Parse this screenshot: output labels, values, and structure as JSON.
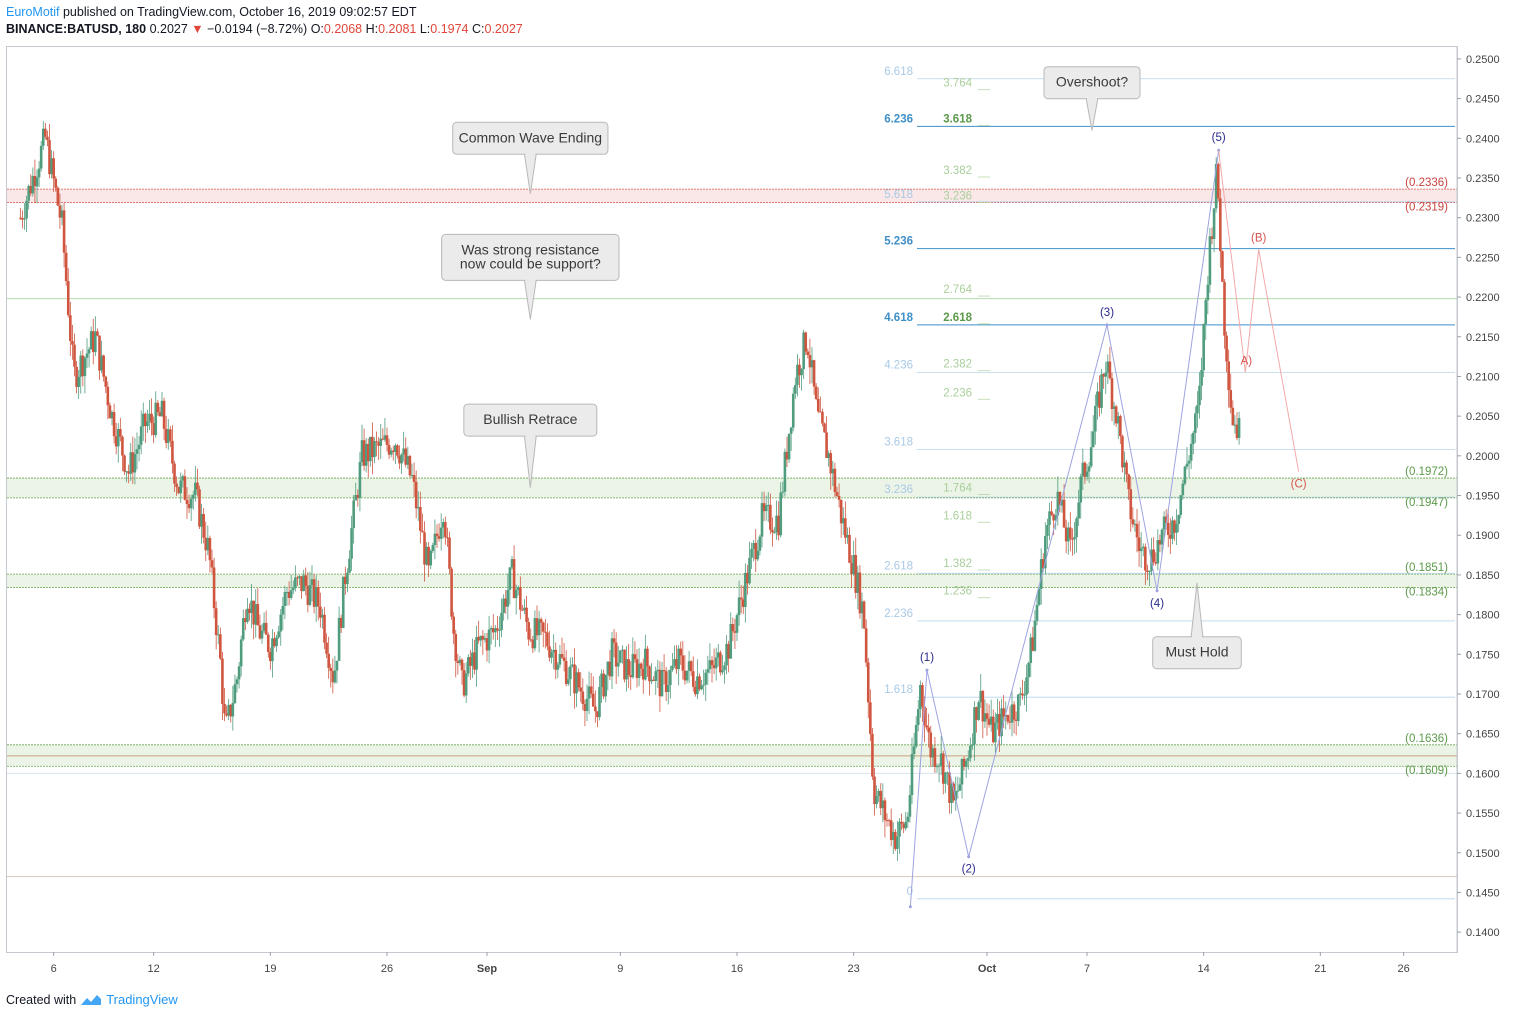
{
  "header": {
    "author": "EuroMotif",
    "published": "published on TradingView.com, October 16, 2019 09:02:57 EDT",
    "symbol": "BINANCE:BATUSD, 180",
    "last": "0.2027",
    "change": "−0.0194 (−8.72%)",
    "o_label": "O:",
    "o": "0.2068",
    "h_label": "H:",
    "h": "0.2081",
    "l_label": "L:",
    "l": "0.1974",
    "c_label": "C:",
    "c": "0.2027"
  },
  "footer": {
    "created": "Created with",
    "brand": "TradingView"
  },
  "colors": {
    "up": "#4f9c7e",
    "down": "#d0553f",
    "blue_level": "#4a9ad6",
    "green_level": "#6aa84f",
    "red_level": "#d9534f",
    "wave": "#2a2a8c"
  },
  "chart_data": {
    "type": "candlestick",
    "symbol": "BINANCE:BATUSD",
    "interval": "180",
    "y_axis": {
      "range": [
        0.1375,
        0.2515
      ],
      "ticks": [
        "0.2500",
        "0.2450",
        "0.2400",
        "0.2350",
        "0.2300",
        "0.2250",
        "0.2200",
        "0.2150",
        "0.2100",
        "0.2050",
        "0.2000",
        "0.1950",
        "0.1900",
        "0.1850",
        "0.1800",
        "0.1750",
        "0.1700",
        "0.1650",
        "0.1600",
        "0.1550",
        "0.1500",
        "0.1450",
        "0.1400"
      ]
    },
    "x_axis": {
      "ticks": [
        {
          "label": "6",
          "bold": false,
          "day": 6
        },
        {
          "label": "12",
          "bold": false,
          "day": 12
        },
        {
          "label": "19",
          "bold": false,
          "day": 19
        },
        {
          "label": "26",
          "bold": false,
          "day": 26
        },
        {
          "label": "Sep",
          "bold": true,
          "day": 32
        },
        {
          "label": "9",
          "bold": false,
          "day": 40
        },
        {
          "label": "16",
          "bold": false,
          "day": 47
        },
        {
          "label": "23",
          "bold": false,
          "day": 54
        },
        {
          "label": "Oct",
          "bold": true,
          "day": 62
        },
        {
          "label": "7",
          "bold": false,
          "day": 68
        },
        {
          "label": "14",
          "bold": false,
          "day": 75
        },
        {
          "label": "21",
          "bold": false,
          "day": 82
        },
        {
          "label": "26",
          "bold": false,
          "day": 87
        }
      ]
    },
    "price_path": [
      [
        4,
        0.23
      ],
      [
        5.5,
        0.24
      ],
      [
        6.5,
        0.229
      ],
      [
        7.2,
        0.21
      ],
      [
        8.5,
        0.215
      ],
      [
        9.5,
        0.205
      ],
      [
        10.5,
        0.198
      ],
      [
        11.5,
        0.204
      ],
      [
        12.5,
        0.205
      ],
      [
        13.5,
        0.196
      ],
      [
        14.5,
        0.195
      ],
      [
        15.3,
        0.188
      ],
      [
        16,
        0.174
      ],
      [
        16.3,
        0.165
      ],
      [
        17,
        0.172
      ],
      [
        17.6,
        0.183
      ],
      [
        18.3,
        0.178
      ],
      [
        19,
        0.176
      ],
      [
        20,
        0.183
      ],
      [
        21,
        0.184
      ],
      [
        22,
        0.181
      ],
      [
        22.8,
        0.172
      ],
      [
        23.5,
        0.185
      ],
      [
        24.5,
        0.2
      ],
      [
        25.5,
        0.201
      ],
      [
        26.5,
        0.202
      ],
      [
        27.5,
        0.197
      ],
      [
        28.5,
        0.185
      ],
      [
        29.4,
        0.194
      ],
      [
        30,
        0.178
      ],
      [
        30.5,
        0.171
      ],
      [
        31.5,
        0.176
      ],
      [
        32.5,
        0.178
      ],
      [
        33.5,
        0.185
      ],
      [
        34.5,
        0.178
      ],
      [
        35.5,
        0.177
      ],
      [
        36.5,
        0.174
      ],
      [
        37.5,
        0.171
      ],
      [
        38.5,
        0.168
      ],
      [
        39.5,
        0.175
      ],
      [
        40.5,
        0.173
      ],
      [
        41.5,
        0.174
      ],
      [
        42.5,
        0.171
      ],
      [
        43.5,
        0.174
      ],
      [
        44.5,
        0.172
      ],
      [
        45.5,
        0.173
      ],
      [
        46.5,
        0.176
      ],
      [
        47.5,
        0.184
      ],
      [
        48.5,
        0.192
      ],
      [
        49.5,
        0.192
      ],
      [
        50.5,
        0.21
      ],
      [
        51.2,
        0.215
      ],
      [
        51.8,
        0.205
      ],
      [
        52.5,
        0.2
      ],
      [
        53.3,
        0.192
      ],
      [
        54,
        0.186
      ],
      [
        54.6,
        0.18
      ],
      [
        55.2,
        0.158
      ],
      [
        55.8,
        0.155
      ],
      [
        56.5,
        0.152
      ],
      [
        57.2,
        0.154
      ],
      [
        58,
        0.171
      ],
      [
        58.6,
        0.163
      ],
      [
        59.2,
        0.162
      ],
      [
        60,
        0.156
      ],
      [
        60.8,
        0.162
      ],
      [
        61.5,
        0.17
      ],
      [
        62.3,
        0.165
      ],
      [
        63,
        0.167
      ],
      [
        64,
        0.169
      ],
      [
        64.7,
        0.176
      ],
      [
        65.5,
        0.19
      ],
      [
        66.2,
        0.195
      ],
      [
        67,
        0.188
      ],
      [
        67.6,
        0.196
      ],
      [
        68.3,
        0.202
      ],
      [
        69.1,
        0.212
      ],
      [
        69.8,
        0.205
      ],
      [
        70.5,
        0.194
      ],
      [
        71.2,
        0.188
      ],
      [
        71.8,
        0.187
      ],
      [
        72.5,
        0.19
      ],
      [
        73.3,
        0.192
      ],
      [
        74,
        0.199
      ],
      [
        74.7,
        0.206
      ],
      [
        75.3,
        0.225
      ],
      [
        75.8,
        0.236
      ],
      [
        76.2,
        0.218
      ],
      [
        76.7,
        0.205
      ],
      [
        77.2,
        0.2027
      ]
    ],
    "zones": [
      {
        "type": "red",
        "top": 0.2336,
        "bottom": 0.2319
      },
      {
        "type": "green",
        "top": 0.1972,
        "bottom": 0.1947
      },
      {
        "type": "green",
        "top": 0.1851,
        "bottom": 0.1834
      },
      {
        "type": "green",
        "top": 0.1636,
        "bottom": 0.1609
      }
    ],
    "zone_labels": [
      {
        "text": "(0.2336)",
        "value": 0.2336,
        "color": "red"
      },
      {
        "text": "(0.2319)",
        "value": 0.2319,
        "color": "red"
      },
      {
        "text": "(0.1972)",
        "value": 0.1972,
        "color": "green"
      },
      {
        "text": "(0.1947)",
        "value": 0.1947,
        "color": "green"
      },
      {
        "text": "(0.1851)",
        "value": 0.1851,
        "color": "green"
      },
      {
        "text": "(0.1834)",
        "value": 0.1834,
        "color": "green"
      },
      {
        "text": "(0.1636)",
        "value": 0.1636,
        "color": "green"
      },
      {
        "text": "(0.1609)",
        "value": 0.1609,
        "color": "green"
      }
    ],
    "fib_extension": [
      {
        "label": "6.618",
        "value": 0.2475,
        "strong": false
      },
      {
        "label": "6.236",
        "value": 0.2415,
        "strong": true
      },
      {
        "label": "5.618",
        "value": 0.232,
        "strong": false
      },
      {
        "label": "5.236",
        "value": 0.2261,
        "strong": true
      },
      {
        "label": "4.618",
        "value": 0.2165,
        "strong": true
      },
      {
        "label": "4.236",
        "value": 0.2105,
        "strong": false
      },
      {
        "label": "3.618",
        "value": 0.2008,
        "strong": false
      },
      {
        "label": "3.236",
        "value": 0.1948,
        "strong": false
      },
      {
        "label": "2.618",
        "value": 0.1852,
        "strong": false
      },
      {
        "label": "2.236",
        "value": 0.1792,
        "strong": false
      },
      {
        "label": "1.618",
        "value": 0.1696,
        "strong": false
      },
      {
        "label": "0",
        "value": 0.1442,
        "strong": false
      }
    ],
    "fib_green": [
      {
        "label": "3.764",
        "value": 0.246,
        "strong": false
      },
      {
        "label": "3.618",
        "value": 0.2415,
        "strong": true
      },
      {
        "label": "3.382",
        "value": 0.235,
        "strong": false
      },
      {
        "label": "3.236",
        "value": 0.2318,
        "strong": false
      },
      {
        "label": "2.764",
        "value": 0.22,
        "strong": false
      },
      {
        "label": "2.618",
        "value": 0.2165,
        "strong": true
      },
      {
        "label": "2.382",
        "value": 0.2106,
        "strong": false
      },
      {
        "label": "2.236",
        "value": 0.207,
        "strong": false
      },
      {
        "label": "1.764",
        "value": 0.195,
        "strong": false
      },
      {
        "label": "1.618",
        "value": 0.1915,
        "strong": false
      },
      {
        "label": "1.382",
        "value": 0.1855,
        "strong": false
      },
      {
        "label": "1.236",
        "value": 0.182,
        "strong": false
      }
    ],
    "horizontal_lines": [
      {
        "value": 0.2198,
        "color": "#b7d9b0"
      },
      {
        "value": 0.147,
        "color": "#d8c9b8"
      },
      {
        "value": 0.16,
        "color": "#d6e4f0"
      }
    ],
    "waves_blue": [
      {
        "label": "",
        "day": 57.4,
        "price": 0.1432
      },
      {
        "label": "(1)",
        "day": 58.4,
        "price": 0.173
      },
      {
        "label": "(2)",
        "day": 60.9,
        "price": 0.1495
      },
      {
        "label": "(3)",
        "day": 69.2,
        "price": 0.2165
      },
      {
        "label": "(4)",
        "day": 72.2,
        "price": 0.183
      },
      {
        "label": "(5)",
        "day": 75.9,
        "price": 0.2385
      }
    ],
    "waves_red": [
      {
        "label": "A)",
        "day": 77.5,
        "price": 0.2105
      },
      {
        "label": "(B)",
        "day": 78.3,
        "price": 0.226
      },
      {
        "label": "(C)",
        "day": 80.7,
        "price": 0.198
      }
    ],
    "callouts": [
      {
        "text": [
          "Common Wave Ending"
        ],
        "box_day": 34.6,
        "box_price": 0.24,
        "tip_day": 34.6,
        "tip_price": 0.233
      },
      {
        "text": [
          "Was strong resistance",
          "now could be support?"
        ],
        "box_day": 34.6,
        "box_price": 0.225,
        "tip_day": 34.6,
        "tip_price": 0.2172
      },
      {
        "text": [
          "Bullish Retrace"
        ],
        "box_day": 34.6,
        "box_price": 0.2045,
        "tip_day": 34.6,
        "tip_price": 0.196
      },
      {
        "text": [
          "Overshoot?"
        ],
        "box_day": 68.3,
        "box_price": 0.247,
        "tip_day": 68.3,
        "tip_price": 0.241
      },
      {
        "text": [
          "Must Hold"
        ],
        "box_day": 74.6,
        "box_price": 0.1752,
        "tip_day": 74.6,
        "tip_price": 0.184
      }
    ]
  }
}
